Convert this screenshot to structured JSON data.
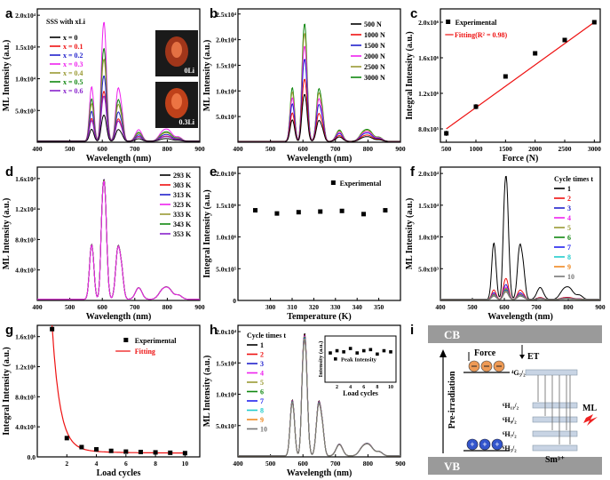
{
  "figure": {
    "panel_labels": [
      "a",
      "b",
      "c",
      "d",
      "e",
      "f",
      "g",
      "h",
      "i"
    ]
  },
  "chart_data": [
    {
      "id": "a",
      "type": "line",
      "title": "SSS with xLi",
      "xlabel": "Wavelength (nm)",
      "ylabel": "ML Intensity (a.u.)",
      "xlim": [
        400,
        900
      ],
      "ylim": [
        0,
        21000
      ],
      "xticks": [
        400,
        500,
        600,
        700,
        800,
        900
      ],
      "yticks": [
        5000,
        10000,
        15000,
        20000
      ],
      "ytick_labels": [
        "5.0x10³",
        "1.0x10⁴",
        "1.5x10⁴",
        "2.0x10⁴"
      ],
      "series": [
        {
          "name": "x = 0",
          "color": "#000000",
          "scale": 0.22
        },
        {
          "name": "x = 0.1",
          "color": "#ee1111",
          "scale": 0.42
        },
        {
          "name": "x = 0.2",
          "color": "#2222cc",
          "scale": 0.55
        },
        {
          "name": "x = 0.3",
          "color": "#ee22ee",
          "scale": 1.0
        },
        {
          "name": "x = 0.4",
          "color": "#999933",
          "scale": 0.69
        },
        {
          "name": "x = 0.5",
          "color": "#118811",
          "scale": 0.78
        },
        {
          "name": "x = 0.6",
          "color": "#8822cc",
          "scale": 0.38
        }
      ],
      "peak_value": 18800,
      "inset_labels": [
        "0Li",
        "0.3Li"
      ]
    },
    {
      "id": "b",
      "type": "line",
      "xlabel": "Wavelength (nm)",
      "ylabel": "ML Intensity (a.u.)",
      "xlim": [
        400,
        900
      ],
      "ylim": [
        0,
        26000
      ],
      "xticks": [
        400,
        500,
        600,
        700,
        800,
        900
      ],
      "yticks": [
        5000,
        10000,
        15000,
        20000,
        25000
      ],
      "ytick_labels": [
        "5.0x10³",
        "1.0x10⁴",
        "1.5x10⁴",
        "2.0x10⁴",
        "2.5x10⁴"
      ],
      "series": [
        {
          "name": "500 N",
          "color": "#000000",
          "scale": 0.4
        },
        {
          "name": "1000 N",
          "color": "#ee1111",
          "scale": 0.53
        },
        {
          "name": "1500 N",
          "color": "#2222cc",
          "scale": 0.7
        },
        {
          "name": "2000 N",
          "color": "#ee22ee",
          "scale": 0.81
        },
        {
          "name": "2500 N",
          "color": "#999933",
          "scale": 0.92
        },
        {
          "name": "3000 N",
          "color": "#118811",
          "scale": 1.0
        }
      ],
      "peak_value": 23000
    },
    {
      "id": "c",
      "type": "scatter",
      "xlabel": "Force (N)",
      "ylabel": "Integral Intensity (a.u.)",
      "xlim": [
        400,
        3100
      ],
      "ylim": [
        650000,
        2150000
      ],
      "xticks": [
        500,
        1000,
        1500,
        2000,
        2500,
        3000
      ],
      "yticks": [
        800000,
        1200000,
        1600000,
        2000000
      ],
      "ytick_labels": [
        "8.0x10⁵",
        "1.2x10⁶",
        "1.6x10⁶",
        "2.0x10⁶"
      ],
      "x": [
        500,
        1000,
        1500,
        2000,
        2500,
        3000
      ],
      "y": [
        750000,
        1050000,
        1390000,
        1650000,
        1800000,
        2000000
      ],
      "err": [
        30000,
        30000,
        10000,
        10000,
        15000,
        20000
      ],
      "fit": {
        "x": [
          500,
          3000
        ],
        "y": [
          800000,
          2000000
        ]
      },
      "legend": [
        "Experimental",
        "Fitting(R² = 0.98)"
      ]
    },
    {
      "id": "d",
      "type": "line",
      "xlabel": "Wavelength (nm)",
      "ylabel": "ML Intensity (a.u.)",
      "xlim": [
        400,
        900
      ],
      "ylim": [
        0,
        17500
      ],
      "xticks": [
        400,
        500,
        600,
        700,
        800,
        900
      ],
      "yticks": [
        4000,
        8000,
        12000,
        16000
      ],
      "ytick_labels": [
        "4.0x10³",
        "8.0x10³",
        "1.2x10⁴",
        "1.6x10⁴"
      ],
      "series": [
        {
          "name": "293 K",
          "color": "#000000",
          "scale": 1.0
        },
        {
          "name": "303 K",
          "color": "#ee1111",
          "scale": 0.995
        },
        {
          "name": "313 K",
          "color": "#2222cc",
          "scale": 0.99
        },
        {
          "name": "323 K",
          "color": "#ee22ee",
          "scale": 0.985
        },
        {
          "name": "333 K",
          "color": "#999933",
          "scale": 0.99
        },
        {
          "name": "343 K",
          "color": "#118811",
          "scale": 0.995
        },
        {
          "name": "353 K",
          "color": "#8822cc",
          "scale": 1.0
        }
      ],
      "peak_value": 15800
    },
    {
      "id": "e",
      "type": "scatter",
      "xlabel": "Temperature (K)",
      "ylabel": "Integral Intensity (a.u.)",
      "xlim": [
        285,
        360
      ],
      "ylim": [
        0,
        2100000
      ],
      "xticks": [
        300,
        310,
        320,
        330,
        340,
        350
      ],
      "yticks": [
        0,
        500000,
        1000000,
        1500000,
        2000000
      ],
      "ytick_labels": [
        "0",
        "5.0x10⁵",
        "1.0x10⁶",
        "1.5x10⁶",
        "2.0x10⁶"
      ],
      "x": [
        293,
        303,
        313,
        323,
        333,
        343,
        353
      ],
      "y": [
        1420000,
        1370000,
        1390000,
        1400000,
        1410000,
        1360000,
        1420000
      ],
      "legend": [
        "Experimental"
      ]
    },
    {
      "id": "f",
      "type": "line",
      "xlabel": "Wavelength (nm)",
      "ylabel": "ML Intensity (a.u.)",
      "xlim": [
        400,
        900
      ],
      "ylim": [
        0,
        21000
      ],
      "xticks": [
        400,
        500,
        600,
        700,
        800,
        900
      ],
      "yticks": [
        5000,
        10000,
        15000,
        20000
      ],
      "ytick_labels": [
        "5.0x10³",
        "1.0x10⁴",
        "1.5x10⁴",
        "2.0x10⁴"
      ],
      "legend_title": "Cycle times t",
      "series": [
        {
          "name": "1",
          "color": "#000000",
          "scale": 1.0
        },
        {
          "name": "2",
          "color": "#ee1111",
          "scale": 0.17
        },
        {
          "name": "3",
          "color": "#2222cc",
          "scale": 0.12
        },
        {
          "name": "4",
          "color": "#ee22ee",
          "scale": 0.1
        },
        {
          "name": "5",
          "color": "#999933",
          "scale": 0.09
        },
        {
          "name": "6",
          "color": "#118811",
          "scale": 0.08
        },
        {
          "name": "7",
          "color": "#2222ee",
          "scale": 0.075
        },
        {
          "name": "8",
          "color": "#22cccc",
          "scale": 0.07
        },
        {
          "name": "9",
          "color": "#ee8822",
          "scale": 0.065
        },
        {
          "name": "10",
          "color": "#777777",
          "scale": 0.06
        }
      ],
      "peak_value": 19500
    },
    {
      "id": "g",
      "type": "scatter",
      "xlabel": "Load cycles",
      "ylabel": "Integral Intensity (a.u.)",
      "xlim": [
        0,
        11
      ],
      "ylim": [
        0,
        1750000
      ],
      "xticks": [
        2,
        4,
        6,
        8,
        10
      ],
      "yticks": [
        0,
        400000,
        800000,
        1200000,
        1600000
      ],
      "ytick_labels": [
        "0.0",
        "4.0x10⁵",
        "8.0x10⁵",
        "1.2x10⁶",
        "1.6x10⁶"
      ],
      "x": [
        1,
        2,
        3,
        4,
        5,
        6,
        7,
        8,
        9,
        10
      ],
      "y": [
        1700000,
        250000,
        130000,
        100000,
        80000,
        70000,
        65000,
        60000,
        55000,
        50000
      ],
      "fit_curve": true,
      "legend": [
        "Experimental",
        "Fitting"
      ]
    },
    {
      "id": "h",
      "type": "line",
      "xlabel": "Wavelength (nm)",
      "ylabel": "ML Intensity (a.u.)",
      "xlim": [
        400,
        900
      ],
      "ylim": [
        0,
        21000
      ],
      "xticks": [
        400,
        500,
        600,
        700,
        800,
        900
      ],
      "yticks": [
        5000,
        10000,
        15000,
        20000
      ],
      "ytick_labels": [
        "5.0x10³",
        "1.0x10⁴",
        "1.5x10⁴",
        "2.0x10⁴"
      ],
      "legend_title": "Cycle times t",
      "series": [
        {
          "name": "1",
          "color": "#000000",
          "scale": 1.0
        },
        {
          "name": "2",
          "color": "#ee1111",
          "scale": 0.99
        },
        {
          "name": "3",
          "color": "#2222cc",
          "scale": 0.985
        },
        {
          "name": "4",
          "color": "#ee22ee",
          "scale": 0.98
        },
        {
          "name": "5",
          "color": "#999933",
          "scale": 0.975
        },
        {
          "name": "6",
          "color": "#118811",
          "scale": 0.97
        },
        {
          "name": "7",
          "color": "#2222ee",
          "scale": 0.965
        },
        {
          "name": "8",
          "color": "#22cccc",
          "scale": 0.96
        },
        {
          "name": "9",
          "color": "#ee8822",
          "scale": 0.955
        },
        {
          "name": "10",
          "color": "#777777",
          "scale": 0.95
        }
      ],
      "peak_value": 19600,
      "inset": {
        "type": "scatter",
        "xlabel": "Load cycles",
        "ylabel": "Intensity (a.u.)",
        "xticks": [
          2,
          4,
          6,
          8,
          10
        ],
        "legend": [
          "Peak Intensity"
        ],
        "x": [
          1,
          2,
          3,
          4,
          5,
          6,
          7,
          8,
          9,
          10
        ],
        "y": [
          0.93,
          0.95,
          0.94,
          0.97,
          0.93,
          0.95,
          0.96,
          0.92,
          0.95,
          0.94
        ]
      }
    }
  ],
  "diagram_i": {
    "cb_label": "CB",
    "vb_label": "VB",
    "pre_irradiation": "Pre-irradiation",
    "force": "Force",
    "et": "ET",
    "ml": "ML",
    "ion": "Sm³⁺",
    "levels": [
      "⁴G₅/₂",
      "⁶H₁₁/₂",
      "⁶H₉/₂",
      "⁶H₇/₂",
      "⁶H₅/₂"
    ],
    "colors": {
      "band": "#9a9a9a",
      "trap": "#ee9a55",
      "electron": "#3355cc",
      "ml": "#ee2222"
    }
  }
}
